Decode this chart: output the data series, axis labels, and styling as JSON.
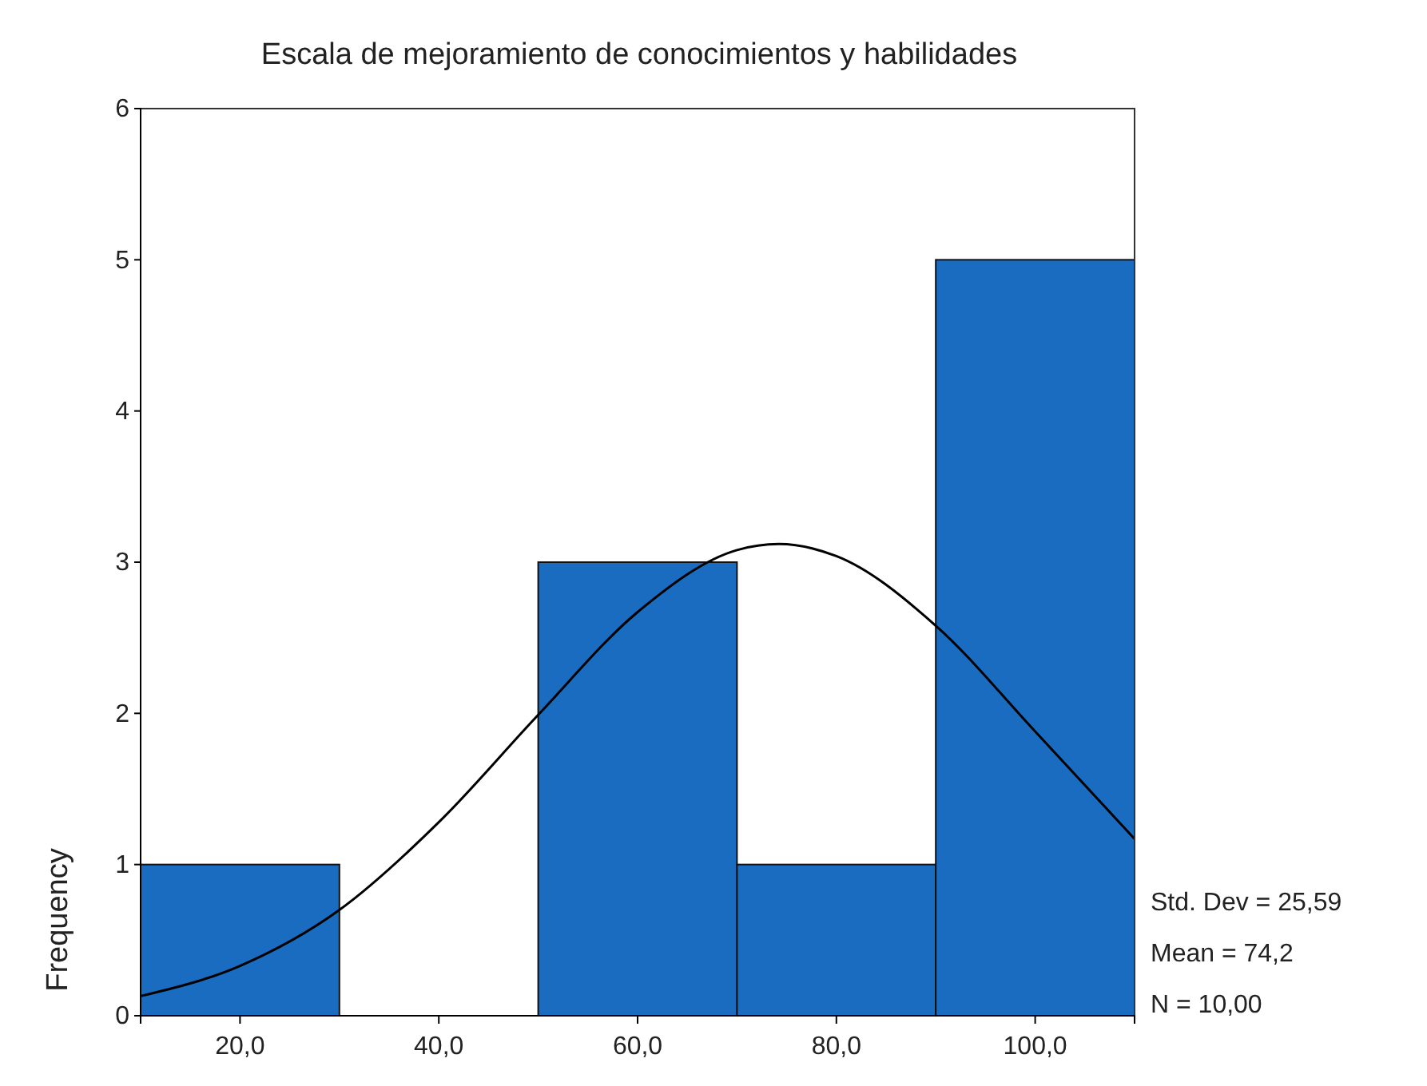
{
  "chart_data": {
    "type": "histogram",
    "title": "Escala de mejoramiento de conocimientos y habilidades",
    "ylabel": "Frequency",
    "bins": [
      10,
      30,
      50,
      70,
      90,
      110
    ],
    "values": [
      1,
      0,
      3,
      1,
      5
    ],
    "color": "#1a6cc0",
    "series": [
      {
        "type": "line",
        "color": "#000000",
        "x": [
          10,
          20,
          30,
          40,
          50,
          60,
          70,
          74.2,
          80,
          90,
          100,
          110
        ],
        "values": [
          0.13,
          0.33,
          0.7,
          1.28,
          1.99,
          2.67,
          3.08,
          3.12,
          3.04,
          2.58,
          1.88,
          1.17
        ]
      }
    ],
    "xlim": [
      10,
      110
    ],
    "xticks": [
      {
        "value": 20,
        "label": "20,0"
      },
      {
        "value": 40,
        "label": "40,0"
      },
      {
        "value": 60,
        "label": "60,0"
      },
      {
        "value": 80,
        "label": "80,0"
      },
      {
        "value": 100,
        "label": "100,0"
      }
    ],
    "ylim": [
      0,
      6
    ],
    "yticks": [
      0,
      1,
      2,
      3,
      4,
      5,
      6
    ],
    "grid": false,
    "marker": "none",
    "line_style": "solid",
    "annotations": [
      "Std. Dev = 25,59",
      "Mean = 74,2",
      "N = 10,00"
    ]
  }
}
